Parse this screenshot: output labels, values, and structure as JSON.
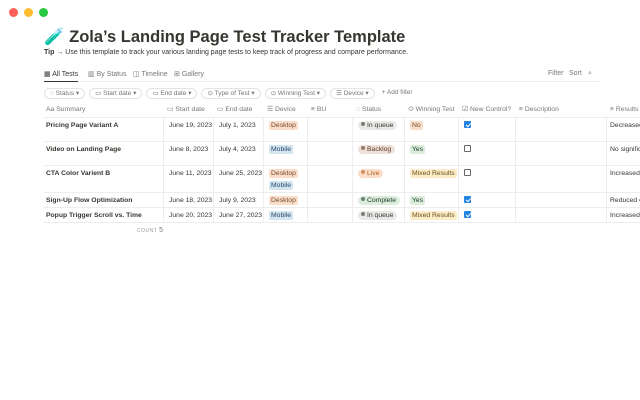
{
  "window": {
    "controls": [
      "close",
      "minimize",
      "maximize"
    ],
    "colors": [
      "#fe5f57",
      "#febc2e",
      "#28c840"
    ]
  },
  "page": {
    "icon": "🧪",
    "title": "Zola’s Landing Page Test Tracker Template",
    "tip_label": "Tip →",
    "tip_text": "Use this template to track your various landing page tests to keep track of progress and compare performance."
  },
  "views": [
    {
      "label": "All Tests",
      "icon": "table-icon",
      "active": true
    },
    {
      "label": "By Status",
      "icon": "board-icon"
    },
    {
      "label": "Timeline",
      "icon": "timeline-icon"
    },
    {
      "label": "Gallery",
      "icon": "gallery-icon"
    }
  ],
  "toolbar": {
    "filter": "Filter",
    "sort": "Sort",
    "search_icon": "search-icon"
  },
  "filters": [
    "Status",
    "Start date",
    "End date",
    "Type of Test",
    "Winning Test",
    "Device"
  ],
  "add_filter": "+ Add filter",
  "columns": [
    "Summary",
    "Start date",
    "End date",
    "Device",
    "BU",
    "Status",
    "Winning Test",
    "New Control?",
    "Description",
    "Results"
  ],
  "rows": [
    {
      "summary": "Pricing Page Variant A",
      "start": "June 19, 2023",
      "end": "July 1, 2023",
      "device": [
        "Desktop"
      ],
      "status": "In queue",
      "winning": "No",
      "new_control": true,
      "results": "Decreased"
    },
    {
      "summary": "Video on Landing Page",
      "start": "June 8, 2023",
      "end": "July 4, 2023",
      "device": [
        "Mobile"
      ],
      "status": "Backlog",
      "winning": "Yes",
      "new_control": false,
      "results": "No signific"
    },
    {
      "summary": "CTA Color Varient B",
      "start": "June 11, 2023",
      "end": "June 25, 2023",
      "device": [
        "Desktop",
        "Mobile"
      ],
      "status": "Live",
      "winning": "Mixed Results",
      "new_control": false,
      "results": "Increased"
    },
    {
      "summary": "Sign-Up Flow Optimization",
      "start": "June 18, 2023",
      "end": "July 9, 2023",
      "device": [
        "Desktop"
      ],
      "status": "Complete",
      "winning": "Yes",
      "new_control": true,
      "results": "Reduced c"
    },
    {
      "summary": "Popup Trigger Scroll vs. Time",
      "start": "June 20, 2023",
      "end": "June 27, 2023",
      "device": [
        "Mobile"
      ],
      "status": "In queue",
      "winning": "Mixed Results",
      "new_control": true,
      "results": "Increased"
    }
  ],
  "count_label": "COUNT",
  "count": "5",
  "colors": {
    "Desktop": [
      "#fadec9",
      "#73492f"
    ],
    "Mobile": [
      "#d3e5ef",
      "#28456c"
    ],
    "In queue": [
      "#e9e9e7",
      "#37352f"
    ],
    "Backlog": [
      "#eee0da",
      "#5c3b23"
    ],
    "Live": [
      "#fadec9",
      "#b35c1e"
    ],
    "Complete": [
      "#dbeddb",
      "#1c3829"
    ],
    "No": [
      "#fadec9",
      "#73492f"
    ],
    "Yes": [
      "#dbeddb",
      "#1c3829"
    ],
    "Mixed Results": [
      "#fdecc8",
      "#6b4f1a"
    ],
    "checkbox": "#2383e2"
  }
}
